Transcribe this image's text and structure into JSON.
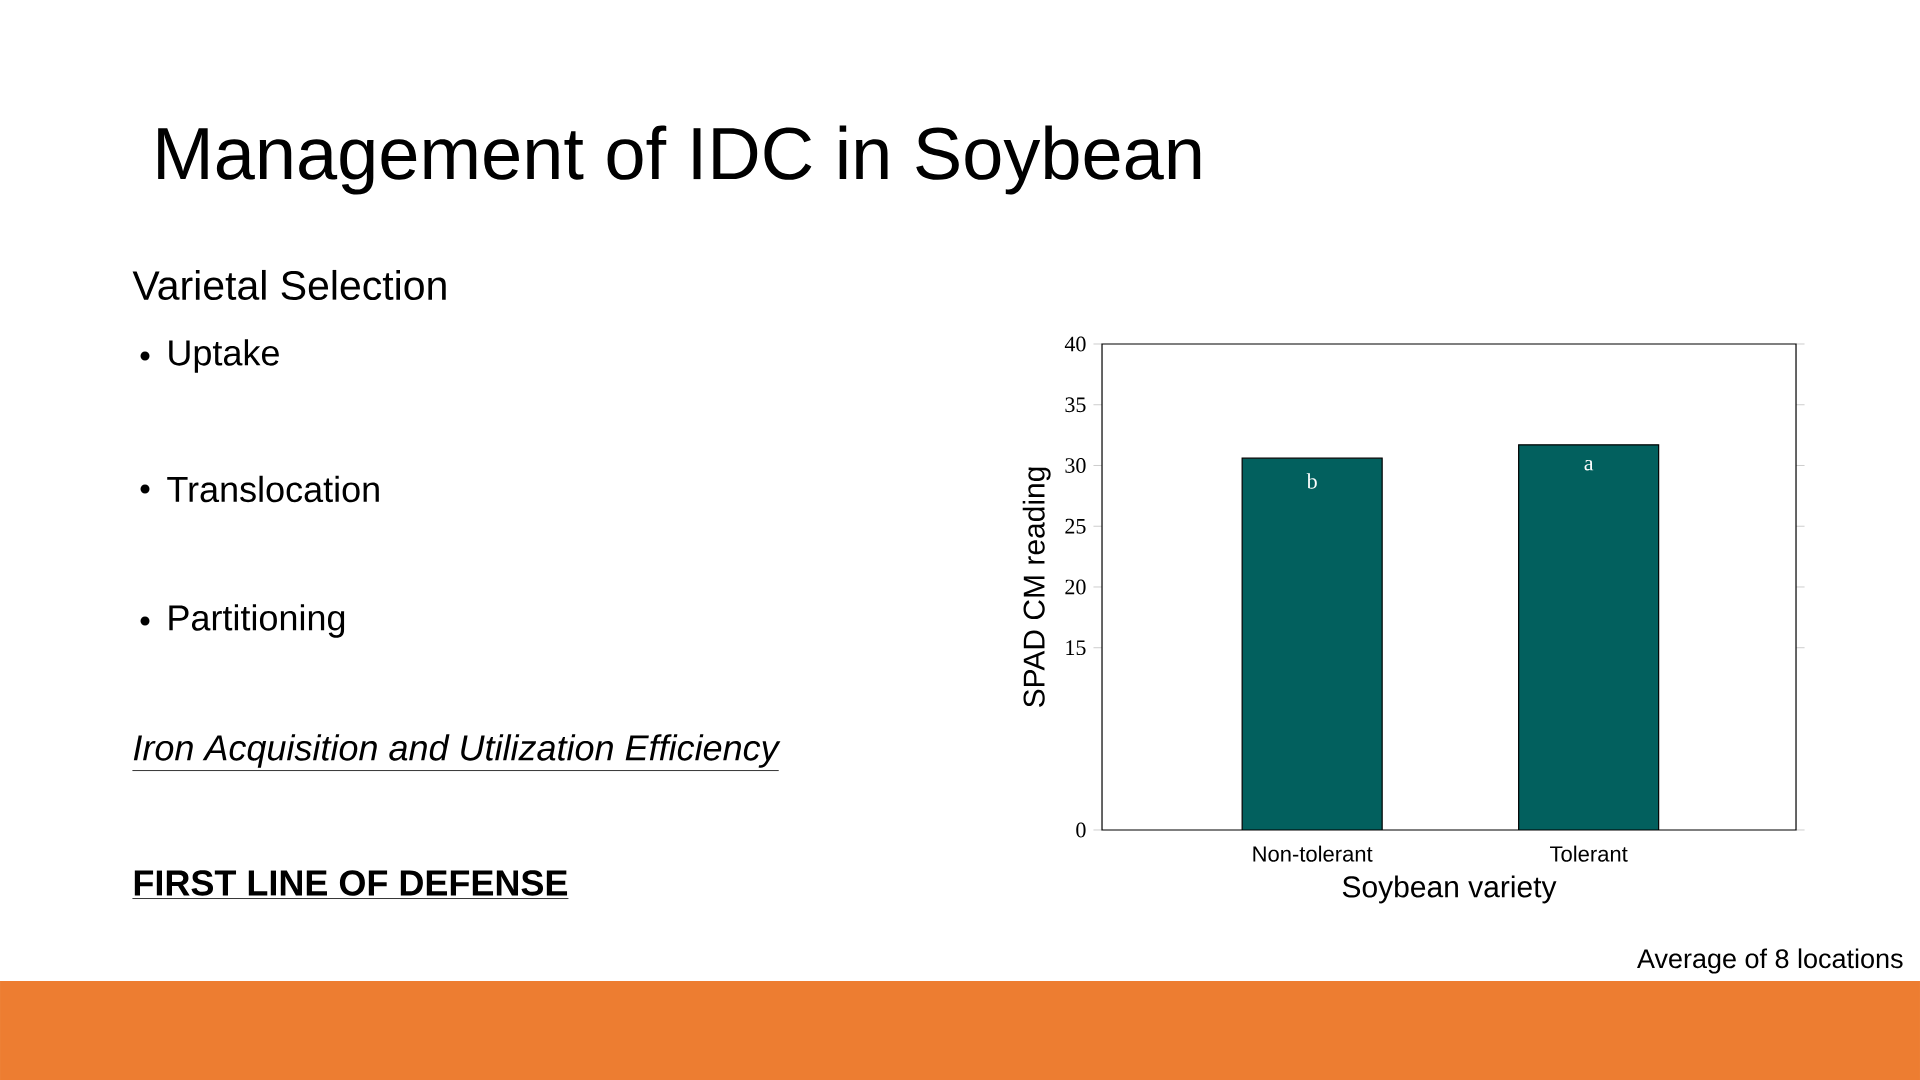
{
  "chart_data": {
    "type": "bar",
    "title": "Management of IDC in Soybean",
    "xlabel": "Soybean variety",
    "ylabel": "SPAD CM reading",
    "categories": [
      "Non-tolerant",
      "Tolerant"
    ],
    "values": [
      30.6,
      31.7
    ],
    "color": "#02605e",
    "ylim": [
      0,
      40
    ],
    "yticks": [
      0,
      15,
      20,
      25,
      30,
      35,
      40
    ],
    "annotations": [
      "Varietal Selection",
      "Uptake",
      "Translocation",
      "Partitioning",
      "Iron Acquisition and Utilization Efficiency",
      "FIRST LINE OF DEFENSE",
      {
        "text": "b",
        "x": "Non-tolerant",
        "y": 30.6
      },
      {
        "text": "a",
        "x": "Tolerant",
        "y": 31.7
      },
      "Average of 8 locations"
    ],
    "grid": false
  }
}
